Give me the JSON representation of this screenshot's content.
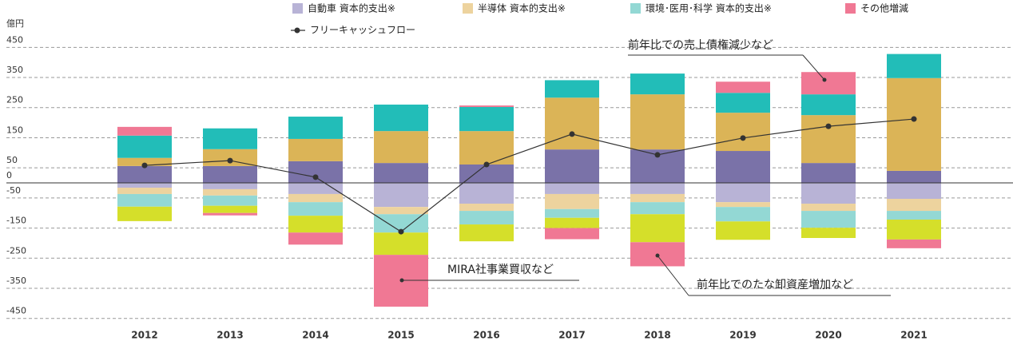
{
  "chart_data": {
    "type": "bar",
    "unit": "億円",
    "categories": [
      "2012",
      "2013",
      "2014",
      "2015",
      "2016",
      "2017",
      "2018",
      "2019",
      "2020",
      "2021"
    ],
    "series": [
      {
        "color": "#7a72a8",
        "values": [
          56,
          56,
          72,
          66,
          61,
          111,
          111,
          106,
          66,
          40
        ]
      },
      {
        "color": "#dbb457",
        "values": [
          27,
          56,
          74,
          106,
          111,
          172,
          183,
          127,
          159,
          308
        ]
      },
      {
        "color": "#22bdb8",
        "values": [
          74,
          69,
          74,
          88,
          80,
          58,
          69,
          66,
          69,
          80
        ]
      },
      {
        "name": "自動車 資本的支出※",
        "color": "#b8b3d6",
        "values": [
          -16,
          -21,
          -37,
          -80,
          -69,
          -37,
          -37,
          -64,
          -69,
          -53
        ]
      },
      {
        "name": "半導体 資本的支出※",
        "color": "#edd39e",
        "values": [
          -21,
          -21,
          -27,
          -24,
          -24,
          -50,
          -27,
          -16,
          -24,
          -40
        ]
      },
      {
        "name": "環境･医用･科学 資本的支出※",
        "color": "#93d8d4",
        "values": [
          -42,
          -34,
          -45,
          -61,
          -45,
          -29,
          -40,
          -48,
          -56,
          -29
        ]
      },
      {
        "color": "#d5df2a",
        "values": [
          -48,
          -24,
          -56,
          -74,
          -56,
          -34,
          -93,
          -61,
          -34,
          -66
        ]
      },
      {
        "name": "その他増減",
        "color": "#f07894",
        "values": [
          29,
          -8,
          -40,
          -172,
          5,
          -37,
          -80,
          37,
          74,
          -29
        ]
      }
    ],
    "line": {
      "name": "フリーキャッシュフロー",
      "color": "#333333",
      "values": [
        58,
        74,
        19,
        -162,
        61,
        162,
        93,
        149,
        188,
        212
      ]
    },
    "ylim": [
      -480,
      480
    ],
    "yticks": [
      450,
      350,
      250,
      150,
      50,
      0,
      -50,
      -150,
      -250,
      -350,
      -450
    ],
    "grid": true,
    "annotations": [
      "前年比での売上債権減少など",
      "MIRA社事業買収など",
      "前年比でのたな卸資産増加など"
    ]
  }
}
